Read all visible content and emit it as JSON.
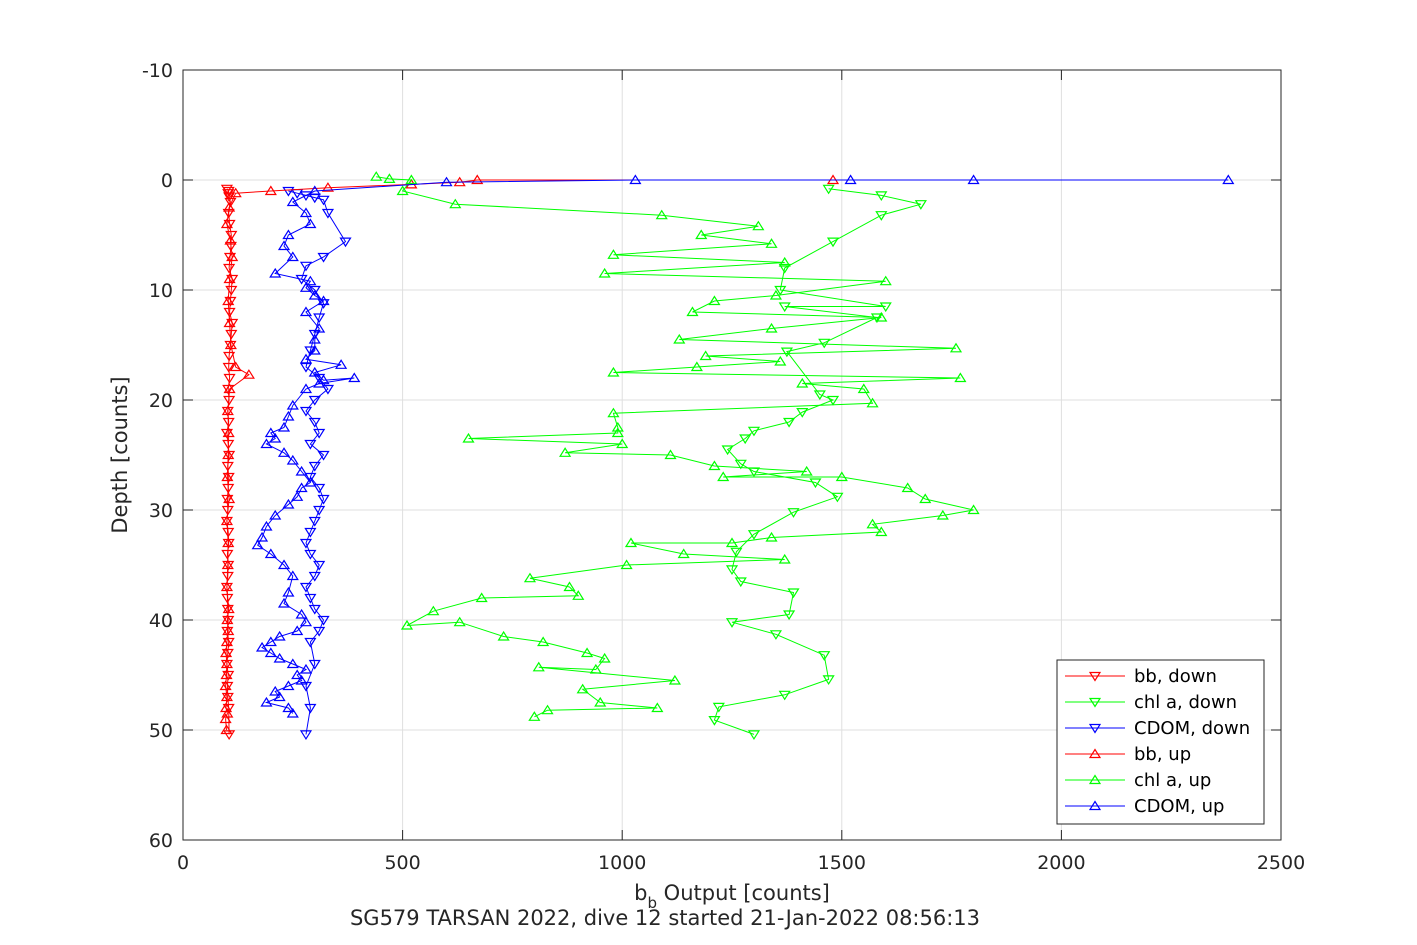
{
  "chart_data": {
    "type": "line",
    "xlabel_main": "b",
    "xlabel_sub": "b",
    "xlabel_rest": " Output [counts]",
    "ylabel": "Depth [counts]",
    "caption": "SG579 TARSAN 2022, dive 12 started 21-Jan-2022 08:56:13",
    "xlim": [
      0,
      2500
    ],
    "ylim": [
      -10,
      60
    ],
    "y_reversed": true,
    "grid": true,
    "legend_position": "bottom-right",
    "xticks": [
      0,
      500,
      1000,
      1500,
      2000,
      2500
    ],
    "xtick_labels": [
      "0",
      "500",
      "1000",
      "1500",
      "2000",
      "2500"
    ],
    "yticks": [
      -10,
      0,
      10,
      20,
      30,
      40,
      50,
      60
    ],
    "ytick_labels": [
      "-10",
      "0",
      "10",
      "20",
      "30",
      "40",
      "50",
      "60"
    ],
    "colors": {
      "bb": "#ff0000",
      "chl": "#00ff00",
      "cdom": "#0000ff"
    },
    "series": [
      {
        "name": "bb, down",
        "color": "#ff0000",
        "marker": "triangle-down",
        "x": [
          100,
          104,
          103,
          105,
          108,
          104,
          106,
          110,
          109,
          107,
          105,
          112,
          110,
          108,
          106,
          112,
          110,
          108,
          105,
          104,
          106,
          103,
          105,
          102,
          104,
          100,
          103,
          105,
          102,
          104,
          103,
          101,
          102,
          100,
          103,
          104,
          101,
          103,
          102,
          100,
          101,
          102,
          103,
          101,
          104,
          102,
          100,
          103,
          101,
          102,
          104,
          105
        ],
        "y": [
          0.8,
          1.0,
          1.2,
          1.5,
          2.0,
          3.0,
          4.0,
          5.0,
          6.0,
          7.0,
          8.0,
          9.0,
          10.0,
          11.0,
          12.0,
          13.0,
          14.0,
          15.0,
          16.0,
          17.0,
          18.0,
          19.0,
          20.0,
          21.0,
          22.0,
          23.0,
          24.0,
          25.0,
          26.0,
          27.0,
          28.0,
          29.0,
          30.0,
          31.0,
          32.0,
          33.0,
          34.0,
          35.0,
          36.0,
          37.0,
          38.0,
          39.0,
          40.0,
          41.0,
          42.0,
          43.0,
          44.0,
          45.0,
          46.0,
          47.0,
          48.0,
          50.4
        ]
      },
      {
        "name": "chl a, down",
        "color": "#00ff00",
        "marker": "triangle-down",
        "x": [
          1470,
          1590,
          1680,
          1590,
          1480,
          1370,
          1360,
          1600,
          1370,
          1580,
          1460,
          1375,
          1450,
          1480,
          1410,
          1380,
          1300,
          1280,
          1240,
          1270,
          1300,
          1440,
          1490,
          1390,
          1300,
          1260,
          1250,
          1270,
          1390,
          1380,
          1250,
          1350,
          1460,
          1470,
          1370,
          1220,
          1210,
          1300
        ],
        "y": [
          0.8,
          1.4,
          2.2,
          3.2,
          5.6,
          8.0,
          10.0,
          11.5,
          11.5,
          12.5,
          14.8,
          15.6,
          19.5,
          20.0,
          21.1,
          22.0,
          22.8,
          23.5,
          24.5,
          25.8,
          26.5,
          27.5,
          28.8,
          30.2,
          32.2,
          33.8,
          35.4,
          36.5,
          37.5,
          39.5,
          40.2,
          41.3,
          43.2,
          45.4,
          46.8,
          47.9,
          49.1,
          50.4
        ]
      },
      {
        "name": "CDOM, down",
        "color": "#0000ff",
        "marker": "triangle-down",
        "x": [
          240,
          260,
          280,
          300,
          320,
          330,
          370,
          320,
          280,
          270,
          300,
          320,
          310,
          300,
          290,
          280,
          310,
          330,
          300,
          280,
          300,
          310,
          290,
          320,
          300,
          290,
          310,
          320,
          310,
          300,
          290,
          280,
          290,
          310,
          300,
          280,
          290,
          300,
          320,
          310,
          290,
          300,
          280,
          290,
          280
        ],
        "y": [
          1.0,
          1.2,
          1.4,
          1.6,
          1.8,
          3.0,
          5.6,
          7.0,
          7.8,
          9.0,
          10.0,
          11.2,
          12.5,
          14.0,
          15.5,
          17.0,
          18.0,
          19.0,
          20.0,
          21.0,
          22.0,
          23.0,
          24.0,
          25.0,
          26.0,
          27.0,
          28.0,
          29.0,
          30.0,
          31.0,
          32.0,
          33.0,
          34.0,
          35.0,
          36.0,
          37.0,
          38.0,
          39.0,
          40.0,
          41.0,
          42.0,
          44.0,
          46.0,
          48.0,
          50.4
        ]
      },
      {
        "name": "bb, up",
        "color": "#ff0000",
        "marker": "triangle-up",
        "x": [
          1480,
          670,
          630,
          520,
          330,
          200,
          120,
          105,
          100,
          108,
          112,
          106,
          103,
          106,
          109,
          120,
          150,
          106,
          102,
          104,
          103,
          101,
          105,
          100,
          103,
          102,
          100,
          104,
          101,
          103,
          100,
          98,
          100,
          99,
          97,
          100,
          98,
          101,
          97,
          99
        ],
        "y": [
          0.0,
          0.0,
          0.2,
          0.4,
          0.7,
          1.0,
          1.2,
          2.5,
          4.0,
          5.5,
          7.0,
          9.0,
          11.0,
          13.0,
          15.0,
          17.0,
          17.7,
          19.0,
          21.0,
          23.0,
          25.0,
          27.0,
          29.0,
          31.0,
          33.0,
          35.0,
          37.0,
          39.0,
          40.0,
          41.0,
          42.0,
          43.0,
          44.0,
          45.0,
          46.0,
          47.0,
          48.0,
          48.5,
          49.0,
          50.0
        ]
      },
      {
        "name": "chl a, up",
        "color": "#00ff00",
        "marker": "triangle-up",
        "x": [
          440,
          470,
          520,
          500,
          620,
          1090,
          1310,
          1180,
          1340,
          980,
          1370,
          960,
          1600,
          1350,
          1210,
          1160,
          1590,
          1340,
          1130,
          1760,
          1190,
          1360,
          1170,
          980,
          1770,
          1410,
          1550,
          1570,
          980,
          990,
          990,
          650,
          1000,
          870,
          1110,
          1210,
          1420,
          1230,
          1500,
          1650,
          1690,
          1800,
          1730,
          1570,
          1590,
          1340,
          1250,
          1020,
          1140,
          1370,
          1010,
          790,
          880,
          900,
          680,
          570,
          510,
          630,
          730,
          820,
          920,
          960,
          940,
          810,
          1120,
          910,
          950,
          1080,
          830,
          800
        ],
        "y": [
          -0.3,
          -0.1,
          0.0,
          1.0,
          2.2,
          3.2,
          4.2,
          5.0,
          5.8,
          6.8,
          7.5,
          8.5,
          9.2,
          10.5,
          11.0,
          12.0,
          12.5,
          13.5,
          14.5,
          15.3,
          16.0,
          16.5,
          17.0,
          17.5,
          18.0,
          18.5,
          19.0,
          20.3,
          21.2,
          22.5,
          23.0,
          23.5,
          24.0,
          24.8,
          25.0,
          26.0,
          26.5,
          27.0,
          27.0,
          28.0,
          29.0,
          30.0,
          30.5,
          31.3,
          32.0,
          32.5,
          33.0,
          33.0,
          34.0,
          34.5,
          35.0,
          36.2,
          37.0,
          37.8,
          38.0,
          39.2,
          40.5,
          40.2,
          41.5,
          42.0,
          43.0,
          43.5,
          44.5,
          44.3,
          45.5,
          46.3,
          47.5,
          48.0,
          48.2,
          48.8
        ]
      },
      {
        "name": "CDOM, up",
        "color": "#0000ff",
        "marker": "triangle-up",
        "x": [
          2380,
          1800,
          1520,
          1030,
          600,
          300,
          250,
          280,
          290,
          240,
          230,
          250,
          210,
          290,
          280,
          300,
          320,
          280,
          310,
          300,
          300,
          280,
          360,
          300,
          320,
          390,
          310,
          280,
          250,
          240,
          230,
          200,
          210,
          190,
          230,
          250,
          270,
          290,
          270,
          260,
          240,
          210,
          190,
          180,
          170,
          200,
          230,
          250,
          240,
          230,
          270,
          280,
          260,
          220,
          200,
          180,
          200,
          220,
          250,
          280,
          260,
          270,
          240,
          210,
          220,
          190,
          240,
          250
        ],
        "y": [
          0.0,
          0.0,
          0.0,
          0.0,
          0.2,
          1.0,
          2.0,
          3.0,
          4.0,
          5.0,
          6.0,
          7.0,
          8.5,
          9.2,
          9.8,
          10.5,
          11.0,
          12.0,
          13.5,
          14.5,
          15.5,
          16.3,
          16.8,
          17.5,
          18.2,
          18.0,
          18.5,
          19.0,
          20.5,
          21.5,
          22.5,
          23.0,
          23.5,
          24.0,
          24.8,
          25.5,
          26.5,
          27.5,
          28.0,
          28.8,
          29.5,
          30.5,
          31.5,
          32.5,
          33.2,
          34.0,
          35.0,
          36.0,
          37.5,
          38.5,
          39.5,
          40.2,
          41.0,
          41.5,
          42.0,
          42.5,
          43.0,
          43.5,
          44.0,
          44.5,
          45.0,
          45.5,
          46.0,
          46.5,
          47.0,
          47.5,
          48.0,
          48.5
        ]
      }
    ]
  }
}
